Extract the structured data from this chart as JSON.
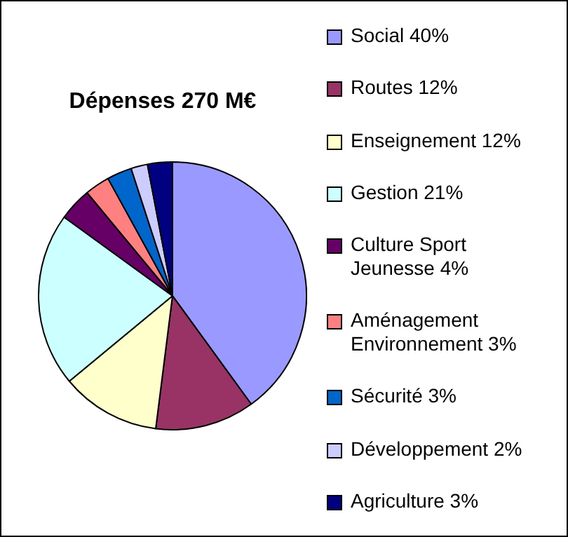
{
  "chart_data": {
    "type": "pie",
    "title": "Dépenses 270 M€",
    "categories": [
      "Social 40%",
      "Routes 12%",
      "Enseignement 12%",
      "Gestion 21%",
      "Culture Sport Jeunesse 4%",
      "Aménagement Environnement 3%",
      "Sécurité 3%",
      "Développement 2%",
      "Agriculture 3%"
    ],
    "values": [
      40,
      12,
      12,
      21,
      4,
      3,
      3,
      2,
      3
    ],
    "colors": [
      "#9999ff",
      "#993366",
      "#ffffcc",
      "#ccffff",
      "#660066",
      "#ff8080",
      "#0066cc",
      "#ccccff",
      "#000080"
    ],
    "legend": "right"
  }
}
